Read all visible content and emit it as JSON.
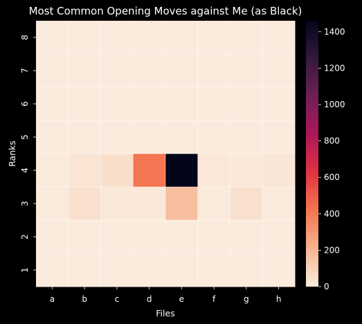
{
  "chart_data": {
    "type": "heatmap",
    "title": "Most Common Opening Moves against Me (as Black)",
    "xlabel": "Files",
    "ylabel": "Ranks",
    "x_categories": [
      "a",
      "b",
      "c",
      "d",
      "e",
      "f",
      "g",
      "h"
    ],
    "y_categories": [
      "8",
      "7",
      "6",
      "5",
      "4",
      "3",
      "2",
      "1"
    ],
    "values": [
      [
        0,
        0,
        0,
        0,
        0,
        0,
        0,
        0
      ],
      [
        0,
        0,
        0,
        0,
        0,
        0,
        0,
        0
      ],
      [
        0,
        0,
        0,
        0,
        0,
        0,
        0,
        0
      ],
      [
        0,
        0,
        0,
        0,
        0,
        0,
        0,
        0
      ],
      [
        5,
        25,
        50,
        420,
        1460,
        15,
        10,
        20
      ],
      [
        5,
        40,
        10,
        10,
        170,
        5,
        40,
        5
      ],
      [
        0,
        0,
        0,
        0,
        0,
        0,
        0,
        0
      ],
      [
        0,
        0,
        0,
        0,
        0,
        0,
        0,
        0
      ]
    ],
    "colorbar": {
      "range": [
        0,
        1460
      ],
      "ticks": [
        "0",
        "200",
        "400",
        "600",
        "800",
        "1000",
        "1200",
        "1400"
      ],
      "colormap": "rocket_r",
      "stops": [
        "#faebdd",
        "#f6b48f",
        "#f37651",
        "#e13342",
        "#ad1759",
        "#701f57",
        "#35193e",
        "#03051a"
      ]
    },
    "background": "#000000",
    "gridline_color": "#ffffff"
  }
}
